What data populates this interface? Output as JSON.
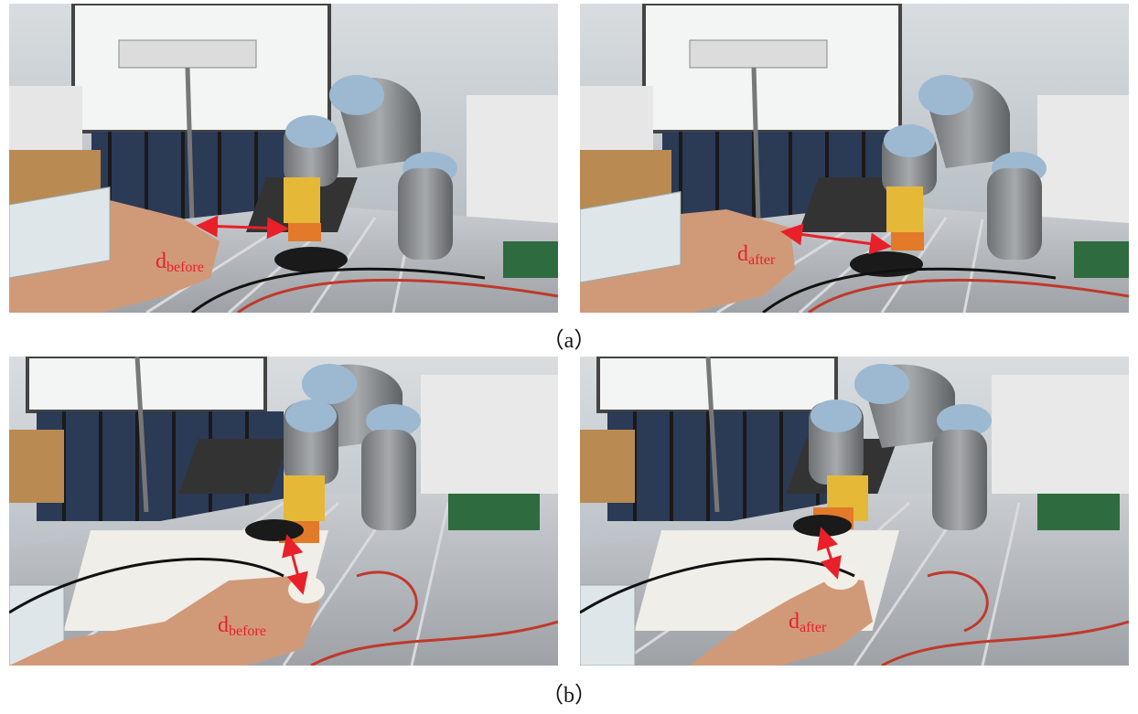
{
  "panels": {
    "a_before": {
      "label_main": "d",
      "label_sub": "before"
    },
    "a_after": {
      "label_main": "d",
      "label_sub": "after"
    },
    "b_before": {
      "label_main": "d",
      "label_sub": "before"
    },
    "b_after": {
      "label_main": "d",
      "label_sub": "after"
    }
  },
  "captions": {
    "a": "（a）",
    "b": "（b）"
  },
  "colors": {
    "arrow": "#e8202a"
  }
}
